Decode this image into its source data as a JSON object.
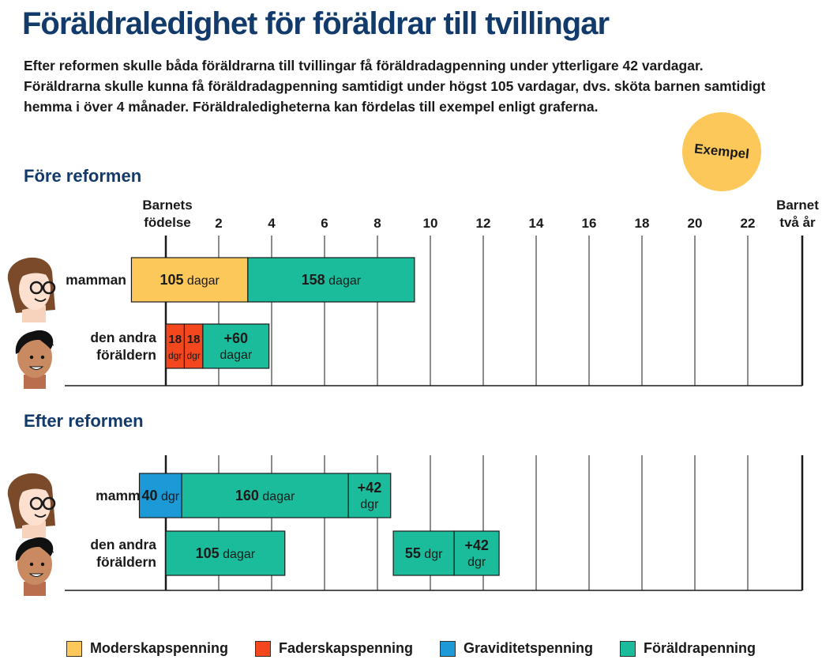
{
  "header": {
    "title": "Föräldraledighet för föräldrar till tvillingar",
    "intro": [
      "Efter reformen skulle båda föräldrarna till tvillingar få föräldradagpenning under ytterligare 42 vardagar.",
      "Föräldrarna skulle kunna få föräldradagpenning samtidigt under högst 105 vardagar, dvs. sköta barnen samtidigt",
      "hemma i över 4 månader. Föräldraledigheterna kan fördelas till exempel enligt graferna."
    ]
  },
  "badge": {
    "label": "Exempel"
  },
  "colors": {
    "moderskap": "#fdc85a",
    "faderskap": "#f5471e",
    "graviditet": "#1b9ad7",
    "foraldra": "#1bbc9b",
    "axis": "#1a1a1a"
  },
  "chart_data": {
    "type": "bar",
    "orientation": "horizontal-stacked",
    "x_unit": "months",
    "xlim": [
      -1.3,
      24
    ],
    "x_start_label": [
      "Barnets",
      "födelse"
    ],
    "x_end_label": [
      "Barnet",
      "två år"
    ],
    "x_ticks": [
      2,
      4,
      6,
      8,
      10,
      12,
      14,
      16,
      18,
      20,
      22
    ],
    "sections": [
      {
        "title": "Före reformen",
        "rows": [
          {
            "label": [
              "mamman"
            ],
            "avatar": "mother-avatar",
            "segments": [
              {
                "start": -1.3,
                "end": 3.1,
                "category": "moderskap",
                "lines": [
                  [
                    {
                      "t": "105",
                      "b": true
                    },
                    {
                      "t": " dagar",
                      "b": false
                    }
                  ]
                ]
              },
              {
                "start": 3.1,
                "end": 9.4,
                "category": "foraldra",
                "lines": [
                  [
                    {
                      "t": "158",
                      "b": true
                    },
                    {
                      "t": " dagar",
                      "b": false
                    }
                  ]
                ]
              }
            ]
          },
          {
            "label": [
              "den andra",
              "föräldern"
            ],
            "avatar": "father-avatar",
            "segments": [
              {
                "start": 0,
                "end": 0.7,
                "category": "faderskap",
                "lines": [
                  [
                    {
                      "t": "18",
                      "b": true
                    }
                  ],
                  [
                    {
                      "t": "dgr",
                      "b": false
                    }
                  ]
                ]
              },
              {
                "start": 0.7,
                "end": 1.4,
                "category": "faderskap",
                "lines": [
                  [
                    {
                      "t": "18",
                      "b": true
                    }
                  ],
                  [
                    {
                      "t": "dgr",
                      "b": false
                    }
                  ]
                ]
              },
              {
                "start": 1.4,
                "end": 3.9,
                "category": "foraldra",
                "lines": [
                  [
                    {
                      "t": "+60",
                      "b": true
                    }
                  ],
                  [
                    {
                      "t": "dagar",
                      "b": false
                    }
                  ]
                ]
              }
            ]
          }
        ]
      },
      {
        "title": "Efter reformen",
        "rows": [
          {
            "label": [
              "mamman"
            ],
            "avatar": "mother-avatar",
            "segments": [
              {
                "start": -1.0,
                "end": 0.6,
                "category": "graviditet",
                "lines": [
                  [
                    {
                      "t": "40",
                      "b": true
                    },
                    {
                      "t": " dgr",
                      "b": false
                    }
                  ]
                ]
              },
              {
                "start": 0.6,
                "end": 6.9,
                "category": "foraldra",
                "lines": [
                  [
                    {
                      "t": "160",
                      "b": true
                    },
                    {
                      "t": " dagar",
                      "b": false
                    }
                  ]
                ]
              },
              {
                "start": 6.9,
                "end": 8.5,
                "category": "foraldra",
                "lines": [
                  [
                    {
                      "t": "+42",
                      "b": true
                    }
                  ],
                  [
                    {
                      "t": "dgr",
                      "b": false
                    }
                  ]
                ]
              }
            ]
          },
          {
            "label": [
              "den andra",
              "föräldern"
            ],
            "avatar": "father-avatar",
            "segments": [
              {
                "start": 0,
                "end": 4.5,
                "category": "foraldra",
                "lines": [
                  [
                    {
                      "t": "105",
                      "b": true
                    },
                    {
                      "t": " dagar",
                      "b": false
                    }
                  ]
                ]
              },
              {
                "start": 8.6,
                "end": 10.9,
                "category": "foraldra",
                "lines": [
                  [
                    {
                      "t": "55",
                      "b": true
                    },
                    {
                      "t": " dgr",
                      "b": false
                    }
                  ]
                ]
              },
              {
                "start": 10.9,
                "end": 12.6,
                "category": "foraldra",
                "lines": [
                  [
                    {
                      "t": "+42",
                      "b": true
                    }
                  ],
                  [
                    {
                      "t": "dgr",
                      "b": false
                    }
                  ]
                ]
              }
            ]
          }
        ]
      }
    ],
    "legend": [
      {
        "key": "moderskap",
        "label": "Moderskapspenning"
      },
      {
        "key": "faderskap",
        "label": "Faderskapspenning"
      },
      {
        "key": "graviditet",
        "label": "Graviditetspenning"
      },
      {
        "key": "foraldra",
        "label": "Föräldrapenning"
      }
    ]
  }
}
